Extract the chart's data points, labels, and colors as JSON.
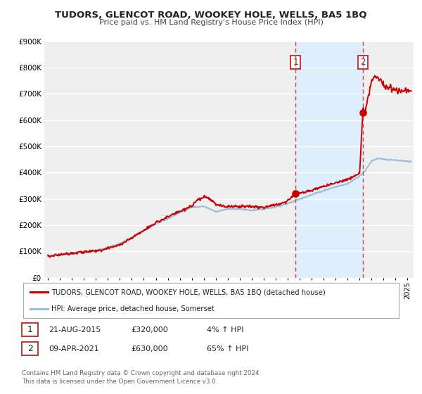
{
  "title": "TUDORS, GLENCOT ROAD, WOOKEY HOLE, WELLS, BA5 1BQ",
  "subtitle": "Price paid vs. HM Land Registry's House Price Index (HPI)",
  "ylim": [
    0,
    900000
  ],
  "xlim_start": 1994.7,
  "xlim_end": 2025.5,
  "background_color": "#ffffff",
  "plot_bg_color": "#efefef",
  "grid_color": "#ffffff",
  "sale1_date": 2015.64,
  "sale1_price": 320000,
  "sale1_label": "1",
  "sale2_date": 2021.27,
  "sale2_price": 630000,
  "sale2_label": "2",
  "red_line_color": "#cc0000",
  "blue_line_color": "#99bbdd",
  "sale_dot_color": "#cc0000",
  "vline_color": "#cc4444",
  "shading_color": "#ddeeff",
  "legend_label_red": "TUDORS, GLENCOT ROAD, WOOKEY HOLE, WELLS, BA5 1BQ (detached house)",
  "legend_label_blue": "HPI: Average price, detached house, Somerset",
  "table_row1": [
    "1",
    "21-AUG-2015",
    "£320,000",
    "4% ↑ HPI"
  ],
  "table_row2": [
    "2",
    "09-APR-2021",
    "£630,000",
    "65% ↑ HPI"
  ],
  "footer1": "Contains HM Land Registry data © Crown copyright and database right 2024.",
  "footer2": "This data is licensed under the Open Government Licence v3.0.",
  "yticks": [
    0,
    100000,
    200000,
    300000,
    400000,
    500000,
    600000,
    700000,
    800000,
    900000
  ],
  "ytick_labels": [
    "£0",
    "£100K",
    "£200K",
    "£300K",
    "£400K",
    "£500K",
    "£600K",
    "£700K",
    "£800K",
    "£900K"
  ]
}
